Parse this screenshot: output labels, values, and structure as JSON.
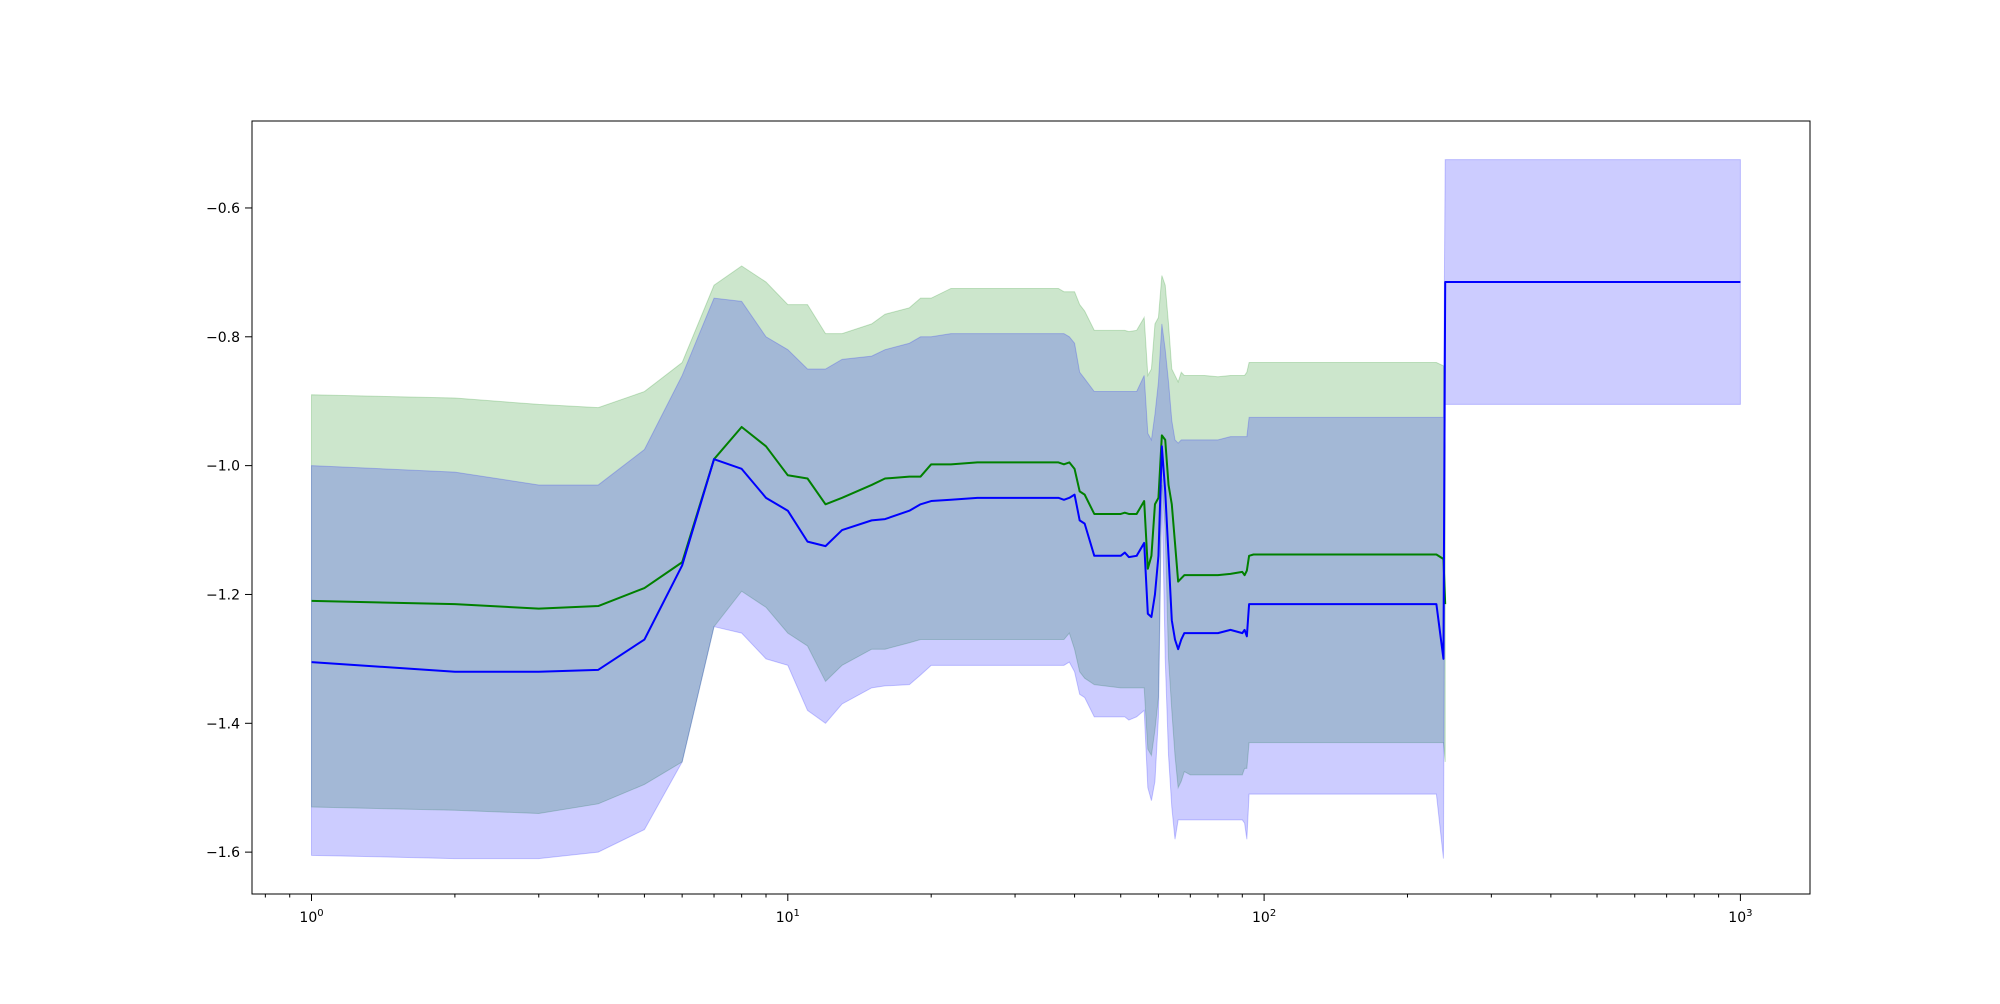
{
  "chart_data": {
    "type": "line",
    "title": "",
    "xlabel": "",
    "ylabel": "",
    "x_scale": "log",
    "xlim": [
      0.75,
      1400
    ],
    "ylim": [
      -1.665,
      -0.465
    ],
    "grid": false,
    "legend": "none",
    "x_ticks": [
      {
        "value": 1,
        "base": "10",
        "exp": "0"
      },
      {
        "value": 10,
        "base": "10",
        "exp": "1"
      },
      {
        "value": 100,
        "base": "10",
        "exp": "2"
      },
      {
        "value": 1000,
        "base": "10",
        "exp": "3"
      }
    ],
    "y_ticks": [
      {
        "value": -0.6,
        "label": "−0.6"
      },
      {
        "value": -0.8,
        "label": "−0.8"
      },
      {
        "value": -1.0,
        "label": "−1.0"
      },
      {
        "value": -1.2,
        "label": "−1.2"
      },
      {
        "value": -1.4,
        "label": "−1.4"
      },
      {
        "value": -1.6,
        "label": "−1.6"
      }
    ],
    "series": [
      {
        "color": "#008000",
        "band_color": "#008000",
        "band_opacity": 0.2,
        "x": [
          1,
          2,
          3,
          4,
          5,
          6,
          7,
          8,
          9,
          10,
          11,
          12,
          13,
          15,
          16,
          18,
          19,
          20,
          22,
          25,
          30,
          37,
          38,
          39,
          40,
          41,
          42,
          44,
          50,
          51,
          52,
          54,
          56,
          57,
          58,
          59,
          60,
          61,
          62,
          63,
          64,
          65,
          66,
          67,
          68,
          70,
          75,
          80,
          85,
          90,
          91,
          92,
          93,
          95,
          100,
          150,
          200,
          230,
          238,
          240
        ],
        "y": [
          -1.21,
          -1.215,
          -1.222,
          -1.218,
          -1.19,
          -1.15,
          -0.99,
          -0.94,
          -0.97,
          -1.015,
          -1.02,
          -1.06,
          -1.05,
          -1.03,
          -1.02,
          -1.017,
          -1.017,
          -0.998,
          -0.998,
          -0.995,
          -0.995,
          -0.995,
          -0.998,
          -0.995,
          -1.005,
          -1.04,
          -1.045,
          -1.075,
          -1.075,
          -1.073,
          -1.075,
          -1.075,
          -1.055,
          -1.16,
          -1.14,
          -1.06,
          -1.05,
          -0.953,
          -0.96,
          -1.03,
          -1.06,
          -1.12,
          -1.18,
          -1.175,
          -1.17,
          -1.17,
          -1.17,
          -1.17,
          -1.168,
          -1.165,
          -1.17,
          -1.163,
          -1.14,
          -1.138,
          -1.138,
          -1.138,
          -1.138,
          -1.138,
          -1.145,
          -1.215
        ],
        "lower": [
          -1.53,
          -1.535,
          -1.54,
          -1.525,
          -1.495,
          -1.46,
          -1.25,
          -1.195,
          -1.22,
          -1.26,
          -1.28,
          -1.335,
          -1.31,
          -1.285,
          -1.285,
          -1.275,
          -1.27,
          -1.27,
          -1.27,
          -1.27,
          -1.27,
          -1.27,
          -1.27,
          -1.26,
          -1.285,
          -1.32,
          -1.33,
          -1.34,
          -1.345,
          -1.345,
          -1.345,
          -1.345,
          -1.345,
          -1.44,
          -1.45,
          -1.41,
          -1.36,
          -1.02,
          -1.1,
          -1.3,
          -1.38,
          -1.45,
          -1.5,
          -1.49,
          -1.475,
          -1.48,
          -1.48,
          -1.48,
          -1.48,
          -1.48,
          -1.47,
          -1.47,
          -1.43,
          -1.43,
          -1.43,
          -1.43,
          -1.43,
          -1.43,
          -1.43,
          -1.46
        ],
        "upper": [
          -0.89,
          -0.895,
          -0.905,
          -0.91,
          -0.885,
          -0.84,
          -0.72,
          -0.69,
          -0.715,
          -0.75,
          -0.75,
          -0.795,
          -0.795,
          -0.78,
          -0.765,
          -0.755,
          -0.74,
          -0.74,
          -0.725,
          -0.725,
          -0.725,
          -0.725,
          -0.73,
          -0.73,
          -0.73,
          -0.75,
          -0.76,
          -0.79,
          -0.79,
          -0.79,
          -0.792,
          -0.79,
          -0.77,
          -0.86,
          -0.85,
          -0.78,
          -0.77,
          -0.705,
          -0.72,
          -0.78,
          -0.85,
          -0.86,
          -0.87,
          -0.855,
          -0.86,
          -0.86,
          -0.86,
          -0.862,
          -0.86,
          -0.86,
          -0.86,
          -0.855,
          -0.84,
          -0.84,
          -0.84,
          -0.84,
          -0.84,
          -0.84,
          -0.845,
          -0.97
        ]
      },
      {
        "color": "#0000ff",
        "band_color": "#0000ff",
        "band_opacity": 0.2,
        "x": [
          1,
          2,
          3,
          4,
          5,
          6,
          7,
          8,
          9,
          10,
          11,
          12,
          13,
          15,
          16,
          18,
          19,
          20,
          22,
          25,
          30,
          37,
          38,
          39,
          40,
          41,
          42,
          44,
          50,
          51,
          52,
          54,
          56,
          57,
          58,
          59,
          60,
          61,
          62,
          63,
          64,
          65,
          66,
          67,
          68,
          70,
          75,
          80,
          85,
          90,
          91,
          92,
          93,
          95,
          100,
          150,
          200,
          230,
          238,
          240,
          241,
          250,
          300,
          500,
          700,
          1000
        ],
        "y": [
          -1.305,
          -1.32,
          -1.32,
          -1.317,
          -1.27,
          -1.155,
          -0.99,
          -1.005,
          -1.05,
          -1.07,
          -1.118,
          -1.125,
          -1.1,
          -1.085,
          -1.083,
          -1.07,
          -1.06,
          -1.055,
          -1.053,
          -1.05,
          -1.05,
          -1.05,
          -1.053,
          -1.05,
          -1.045,
          -1.085,
          -1.09,
          -1.14,
          -1.14,
          -1.135,
          -1.142,
          -1.14,
          -1.12,
          -1.23,
          -1.235,
          -1.2,
          -1.14,
          -0.97,
          -1.04,
          -1.14,
          -1.24,
          -1.27,
          -1.285,
          -1.27,
          -1.26,
          -1.26,
          -1.26,
          -1.26,
          -1.255,
          -1.26,
          -1.255,
          -1.265,
          -1.215,
          -1.215,
          -1.215,
          -1.215,
          -1.215,
          -1.215,
          -1.3,
          -0.715,
          -0.715,
          -0.715,
          -0.715,
          -0.715,
          -0.715,
          -0.715
        ],
        "lower": [
          -1.605,
          -1.61,
          -1.61,
          -1.6,
          -1.565,
          -1.46,
          -1.25,
          -1.26,
          -1.3,
          -1.31,
          -1.38,
          -1.4,
          -1.37,
          -1.345,
          -1.342,
          -1.34,
          -1.325,
          -1.31,
          -1.31,
          -1.31,
          -1.31,
          -1.31,
          -1.31,
          -1.305,
          -1.32,
          -1.355,
          -1.36,
          -1.39,
          -1.39,
          -1.39,
          -1.395,
          -1.39,
          -1.38,
          -1.5,
          -1.52,
          -1.49,
          -1.39,
          -1.03,
          -1.3,
          -1.45,
          -1.53,
          -1.58,
          -1.55,
          -1.55,
          -1.55,
          -1.55,
          -1.55,
          -1.55,
          -1.55,
          -1.55,
          -1.555,
          -1.58,
          -1.51,
          -1.51,
          -1.51,
          -1.51,
          -1.51,
          -1.51,
          -1.61,
          -0.905,
          -0.905,
          -0.905,
          -0.905,
          -0.905,
          -0.905,
          -0.905
        ],
        "upper": [
          -1.0,
          -1.01,
          -1.03,
          -1.03,
          -0.975,
          -0.86,
          -0.74,
          -0.745,
          -0.8,
          -0.82,
          -0.85,
          -0.85,
          -0.835,
          -0.83,
          -0.82,
          -0.81,
          -0.8,
          -0.8,
          -0.795,
          -0.795,
          -0.795,
          -0.795,
          -0.795,
          -0.8,
          -0.81,
          -0.855,
          -0.865,
          -0.885,
          -0.885,
          -0.885,
          -0.885,
          -0.885,
          -0.86,
          -0.95,
          -0.96,
          -0.92,
          -0.87,
          -0.78,
          -0.82,
          -0.87,
          -0.93,
          -0.96,
          -0.965,
          -0.96,
          -0.96,
          -0.96,
          -0.96,
          -0.96,
          -0.955,
          -0.955,
          -0.955,
          -0.955,
          -0.925,
          -0.925,
          -0.925,
          -0.925,
          -0.925,
          -0.925,
          -0.925,
          -0.525,
          -0.525,
          -0.525,
          -0.525,
          -0.525,
          -0.525,
          -0.525
        ]
      }
    ]
  }
}
